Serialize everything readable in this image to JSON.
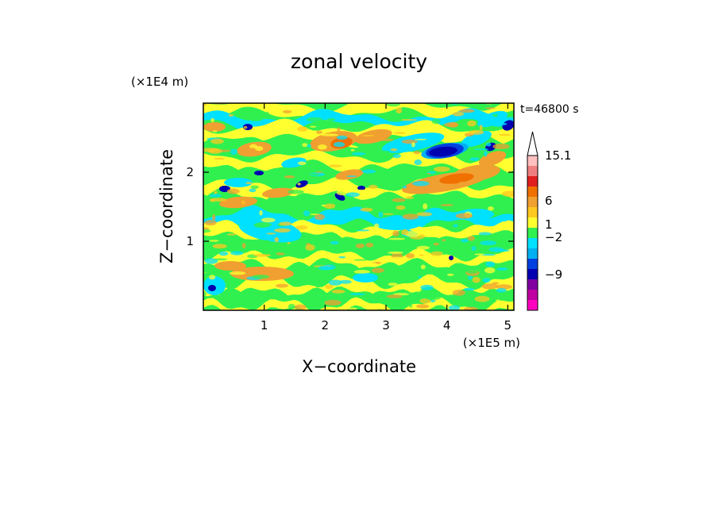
{
  "chart_data": {
    "type": "heatmap",
    "title": "zonal velocity",
    "time_label": "t=46800 s",
    "xlabel": "X−coordinate",
    "ylabel": "Z−coordinate",
    "x_unit": "(×1E5 m)",
    "y_unit": "(×1E4 m)",
    "xlim": [
      0,
      5.1
    ],
    "ylim": [
      0,
      3.0
    ],
    "x_ticks": [
      "1",
      "2",
      "3",
      "4",
      "5"
    ],
    "x_tick_values": [
      1,
      2,
      3,
      4,
      5
    ],
    "y_ticks": [
      "1",
      "2"
    ],
    "y_tick_values": [
      1,
      2
    ],
    "colorbar": {
      "labels": [
        "15.1",
        "6",
        "1",
        "−2",
        "−9"
      ],
      "label_values": [
        15.1,
        6,
        1,
        -2,
        -9
      ],
      "colors_top_to_bottom": [
        "#ffffff",
        "#ffc0c0",
        "#f08080",
        "#e02020",
        "#f07000",
        "#f0a030",
        "#ffc820",
        "#ffff30",
        "#30f050",
        "#00e0ff",
        "#00b0f0",
        "#0040e0",
        "#0000b0",
        "#8000a0",
        "#c000a0",
        "#ff00c0"
      ]
    }
  }
}
